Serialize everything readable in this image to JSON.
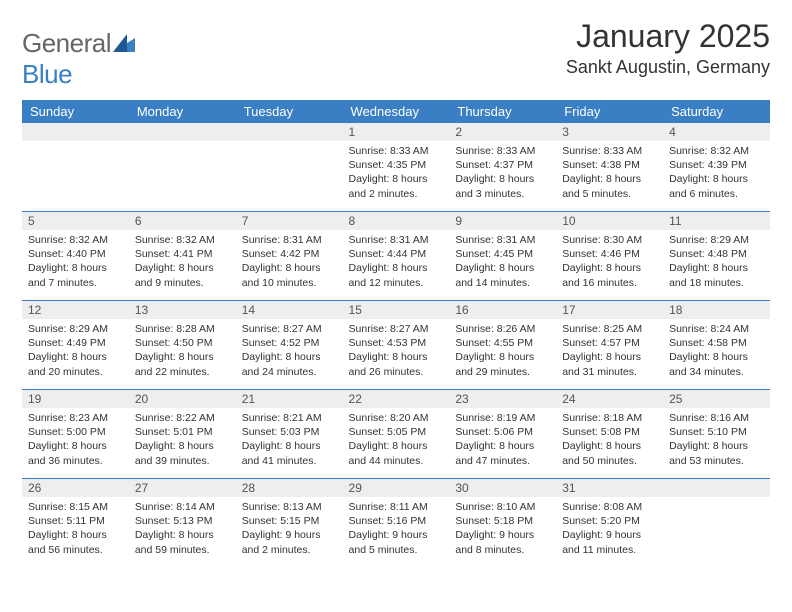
{
  "logo": {
    "textA": "General",
    "textB": "Blue"
  },
  "title": "January 2025",
  "location": "Sankt Augustin, Germany",
  "colors": {
    "header_bg": "#3a7fc4",
    "header_fg": "#ffffff",
    "daynum_bg": "#eceeef",
    "text": "#333333",
    "logo_gray": "#666666",
    "logo_blue": "#3a7fc4"
  },
  "dayHeaders": [
    "Sunday",
    "Monday",
    "Tuesday",
    "Wednesday",
    "Thursday",
    "Friday",
    "Saturday"
  ],
  "weeks": [
    [
      null,
      null,
      null,
      {
        "n": "1",
        "sunrise": "8:33 AM",
        "sunset": "4:35 PM",
        "daylight": "8 hours and 2 minutes."
      },
      {
        "n": "2",
        "sunrise": "8:33 AM",
        "sunset": "4:37 PM",
        "daylight": "8 hours and 3 minutes."
      },
      {
        "n": "3",
        "sunrise": "8:33 AM",
        "sunset": "4:38 PM",
        "daylight": "8 hours and 5 minutes."
      },
      {
        "n": "4",
        "sunrise": "8:32 AM",
        "sunset": "4:39 PM",
        "daylight": "8 hours and 6 minutes."
      }
    ],
    [
      {
        "n": "5",
        "sunrise": "8:32 AM",
        "sunset": "4:40 PM",
        "daylight": "8 hours and 7 minutes."
      },
      {
        "n": "6",
        "sunrise": "8:32 AM",
        "sunset": "4:41 PM",
        "daylight": "8 hours and 9 minutes."
      },
      {
        "n": "7",
        "sunrise": "8:31 AM",
        "sunset": "4:42 PM",
        "daylight": "8 hours and 10 minutes."
      },
      {
        "n": "8",
        "sunrise": "8:31 AM",
        "sunset": "4:44 PM",
        "daylight": "8 hours and 12 minutes."
      },
      {
        "n": "9",
        "sunrise": "8:31 AM",
        "sunset": "4:45 PM",
        "daylight": "8 hours and 14 minutes."
      },
      {
        "n": "10",
        "sunrise": "8:30 AM",
        "sunset": "4:46 PM",
        "daylight": "8 hours and 16 minutes."
      },
      {
        "n": "11",
        "sunrise": "8:29 AM",
        "sunset": "4:48 PM",
        "daylight": "8 hours and 18 minutes."
      }
    ],
    [
      {
        "n": "12",
        "sunrise": "8:29 AM",
        "sunset": "4:49 PM",
        "daylight": "8 hours and 20 minutes."
      },
      {
        "n": "13",
        "sunrise": "8:28 AM",
        "sunset": "4:50 PM",
        "daylight": "8 hours and 22 minutes."
      },
      {
        "n": "14",
        "sunrise": "8:27 AM",
        "sunset": "4:52 PM",
        "daylight": "8 hours and 24 minutes."
      },
      {
        "n": "15",
        "sunrise": "8:27 AM",
        "sunset": "4:53 PM",
        "daylight": "8 hours and 26 minutes."
      },
      {
        "n": "16",
        "sunrise": "8:26 AM",
        "sunset": "4:55 PM",
        "daylight": "8 hours and 29 minutes."
      },
      {
        "n": "17",
        "sunrise": "8:25 AM",
        "sunset": "4:57 PM",
        "daylight": "8 hours and 31 minutes."
      },
      {
        "n": "18",
        "sunrise": "8:24 AM",
        "sunset": "4:58 PM",
        "daylight": "8 hours and 34 minutes."
      }
    ],
    [
      {
        "n": "19",
        "sunrise": "8:23 AM",
        "sunset": "5:00 PM",
        "daylight": "8 hours and 36 minutes."
      },
      {
        "n": "20",
        "sunrise": "8:22 AM",
        "sunset": "5:01 PM",
        "daylight": "8 hours and 39 minutes."
      },
      {
        "n": "21",
        "sunrise": "8:21 AM",
        "sunset": "5:03 PM",
        "daylight": "8 hours and 41 minutes."
      },
      {
        "n": "22",
        "sunrise": "8:20 AM",
        "sunset": "5:05 PM",
        "daylight": "8 hours and 44 minutes."
      },
      {
        "n": "23",
        "sunrise": "8:19 AM",
        "sunset": "5:06 PM",
        "daylight": "8 hours and 47 minutes."
      },
      {
        "n": "24",
        "sunrise": "8:18 AM",
        "sunset": "5:08 PM",
        "daylight": "8 hours and 50 minutes."
      },
      {
        "n": "25",
        "sunrise": "8:16 AM",
        "sunset": "5:10 PM",
        "daylight": "8 hours and 53 minutes."
      }
    ],
    [
      {
        "n": "26",
        "sunrise": "8:15 AM",
        "sunset": "5:11 PM",
        "daylight": "8 hours and 56 minutes."
      },
      {
        "n": "27",
        "sunrise": "8:14 AM",
        "sunset": "5:13 PM",
        "daylight": "8 hours and 59 minutes."
      },
      {
        "n": "28",
        "sunrise": "8:13 AM",
        "sunset": "5:15 PM",
        "daylight": "9 hours and 2 minutes."
      },
      {
        "n": "29",
        "sunrise": "8:11 AM",
        "sunset": "5:16 PM",
        "daylight": "9 hours and 5 minutes."
      },
      {
        "n": "30",
        "sunrise": "8:10 AM",
        "sunset": "5:18 PM",
        "daylight": "9 hours and 8 minutes."
      },
      {
        "n": "31",
        "sunrise": "8:08 AM",
        "sunset": "5:20 PM",
        "daylight": "9 hours and 11 minutes."
      },
      null
    ]
  ],
  "labels": {
    "sunrise": "Sunrise: ",
    "sunset": "Sunset: ",
    "daylight": "Daylight: "
  }
}
